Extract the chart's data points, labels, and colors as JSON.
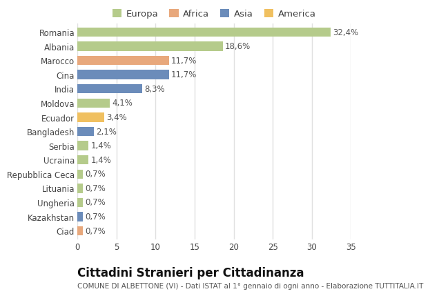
{
  "countries": [
    "Romania",
    "Albania",
    "Marocco",
    "Cina",
    "India",
    "Moldova",
    "Ecuador",
    "Bangladesh",
    "Serbia",
    "Ucraina",
    "Repubblica Ceca",
    "Lituania",
    "Ungheria",
    "Kazakhstan",
    "Ciad"
  ],
  "values": [
    32.4,
    18.6,
    11.7,
    11.7,
    8.3,
    4.1,
    3.4,
    2.1,
    1.4,
    1.4,
    0.7,
    0.7,
    0.7,
    0.7,
    0.7
  ],
  "labels": [
    "32,4%",
    "18,6%",
    "11,7%",
    "11,7%",
    "8,3%",
    "4,1%",
    "3,4%",
    "2,1%",
    "1,4%",
    "1,4%",
    "0,7%",
    "0,7%",
    "0,7%",
    "0,7%",
    "0,7%"
  ],
  "colors": [
    "#b5cb8b",
    "#b5cb8b",
    "#e8a87c",
    "#6b8cba",
    "#6b8cba",
    "#b5cb8b",
    "#f0c060",
    "#6b8cba",
    "#b5cb8b",
    "#b5cb8b",
    "#b5cb8b",
    "#b5cb8b",
    "#b5cb8b",
    "#6b8cba",
    "#e8a87c"
  ],
  "legend_labels": [
    "Europa",
    "Africa",
    "Asia",
    "America"
  ],
  "legend_colors": [
    "#b5cb8b",
    "#e8a87c",
    "#6b8cba",
    "#f0c060"
  ],
  "title": "Cittadini Stranieri per Cittadinanza",
  "subtitle": "COMUNE DI ALBETTONE (VI) - Dati ISTAT al 1° gennaio di ogni anno - Elaborazione TUTTITALIA.IT",
  "xlim": [
    0,
    35
  ],
  "xticks": [
    0,
    5,
    10,
    15,
    20,
    25,
    30,
    35
  ],
  "background_color": "#ffffff",
  "grid_color": "#e0e0e0",
  "bar_height": 0.65,
  "label_fontsize": 8.5,
  "ytick_fontsize": 8.5,
  "xtick_fontsize": 8.5,
  "title_fontsize": 12,
  "subtitle_fontsize": 7.5,
  "legend_fontsize": 9.5
}
